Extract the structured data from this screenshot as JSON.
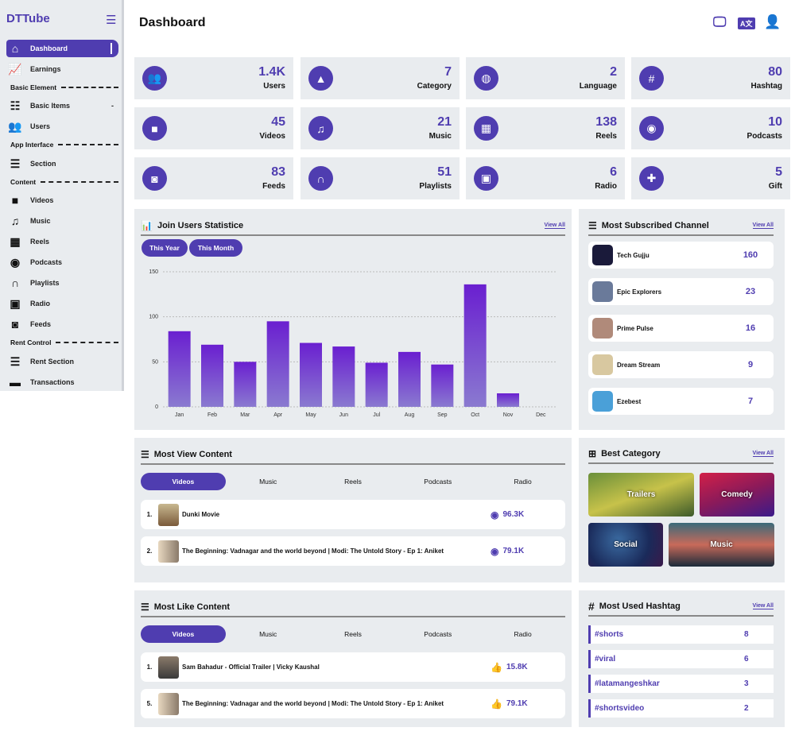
{
  "brand": "DTTube",
  "page_title": "Dashboard",
  "accent": "#4f3db0",
  "sidebar": {
    "items": [
      {
        "label": "Dashboard",
        "icon": "home-icon"
      },
      {
        "label": "Earnings",
        "icon": "chart-line-icon"
      },
      {
        "label": "Basic Items",
        "icon": "sliders-icon"
      },
      {
        "label": "Users",
        "icon": "users-icon"
      },
      {
        "label": "Section",
        "icon": "list-icon"
      },
      {
        "label": "Videos",
        "icon": "video-icon"
      },
      {
        "label": "Music",
        "icon": "music-icon"
      },
      {
        "label": "Reels",
        "icon": "film-icon"
      },
      {
        "label": "Podcasts",
        "icon": "podcast-icon"
      },
      {
        "label": "Playlists",
        "icon": "headphones-icon"
      },
      {
        "label": "Radio",
        "icon": "radio-icon"
      },
      {
        "label": "Feeds",
        "icon": "feed-icon"
      },
      {
        "label": "Rent Section",
        "icon": "list-icon"
      },
      {
        "label": "Transactions",
        "icon": "wallet-icon"
      }
    ],
    "sections": [
      "Basic Element",
      "App Interface",
      "Content",
      "Rent Control"
    ],
    "basic_items_caret": "-"
  },
  "stats": [
    {
      "value": "1.4K",
      "label": "Users",
      "icon": "users-icon"
    },
    {
      "value": "7",
      "label": "Category",
      "icon": "shapes-icon"
    },
    {
      "value": "2",
      "label": "Language",
      "icon": "globe-icon"
    },
    {
      "value": "80",
      "label": "Hashtag",
      "icon": "hashtag-icon"
    },
    {
      "value": "45",
      "label": "Videos",
      "icon": "video-icon"
    },
    {
      "value": "21",
      "label": "Music",
      "icon": "music-icon"
    },
    {
      "value": "138",
      "label": "Reels",
      "icon": "film-icon"
    },
    {
      "value": "10",
      "label": "Podcasts",
      "icon": "podcast-icon"
    },
    {
      "value": "83",
      "label": "Feeds",
      "icon": "feed-icon"
    },
    {
      "value": "51",
      "label": "Playlists",
      "icon": "headphones-icon"
    },
    {
      "value": "6",
      "label": "Radio",
      "icon": "radio-icon"
    },
    {
      "value": "5",
      "label": "Gift",
      "icon": "gift-icon"
    }
  ],
  "join_users": {
    "title": "Join Users Statistice",
    "view_all": "View All",
    "buttons": [
      "This Year",
      "This Month"
    ]
  },
  "chart_data": {
    "type": "bar",
    "categories": [
      "Jan",
      "Feb",
      "Mar",
      "Apr",
      "May",
      "Jun",
      "Jul",
      "Aug",
      "Sep",
      "Oct",
      "Nov",
      "Dec"
    ],
    "values": [
      84,
      69,
      50,
      95,
      71,
      67,
      49,
      61,
      47,
      136,
      15,
      0
    ],
    "yticks": [
      "0",
      "50",
      "100",
      "150"
    ],
    "ylim": [
      0,
      150
    ],
    "grid": true,
    "color": "#6a1fd0"
  },
  "subscribed": {
    "title": "Most Subscribed Channel",
    "view_all": "View All",
    "channels": [
      {
        "name": "Tech Gujju",
        "count": "160"
      },
      {
        "name": "Epic Explorers",
        "count": "23"
      },
      {
        "name": "Prime Pulse",
        "count": "16"
      },
      {
        "name": "Dream Stream",
        "count": "9"
      },
      {
        "name": "Ezebest",
        "count": "7"
      }
    ]
  },
  "most_view": {
    "title": "Most View Content",
    "tabs": [
      "Videos",
      "Music",
      "Reels",
      "Podcasts",
      "Radio"
    ],
    "rows": [
      {
        "rank": "1.",
        "title": "Dunki Movie",
        "count": "96.3K"
      },
      {
        "rank": "2.",
        "title": "The Beginning: Vadnagar and the world beyond | Modi: The Untold Story - Ep 1: Aniket",
        "count": "79.1K"
      }
    ]
  },
  "most_like": {
    "title": "Most Like Content",
    "tabs": [
      "Videos",
      "Music",
      "Reels",
      "Podcasts",
      "Radio"
    ],
    "rows": [
      {
        "rank": "1.",
        "title": "Sam Bahadur - Official Trailer | Vicky Kaushal",
        "count": "15.8K"
      },
      {
        "rank": "5.",
        "title": "The Beginning: Vadnagar and the world beyond | Modi: The Untold Story - Ep 1: Aniket",
        "count": "79.1K"
      }
    ]
  },
  "best_category": {
    "title": "Best Category",
    "view_all": "View All",
    "items": [
      "Trailers",
      "Comedy",
      "Social",
      "Music"
    ]
  },
  "hashtags": {
    "title": "Most Used Hashtag",
    "view_all": "View All",
    "items": [
      {
        "tag": "#shorts",
        "count": "8"
      },
      {
        "tag": "#viral",
        "count": "6"
      },
      {
        "tag": "#latamangeshkar",
        "count": "3"
      },
      {
        "tag": "#shortsvideo",
        "count": "2"
      }
    ]
  }
}
